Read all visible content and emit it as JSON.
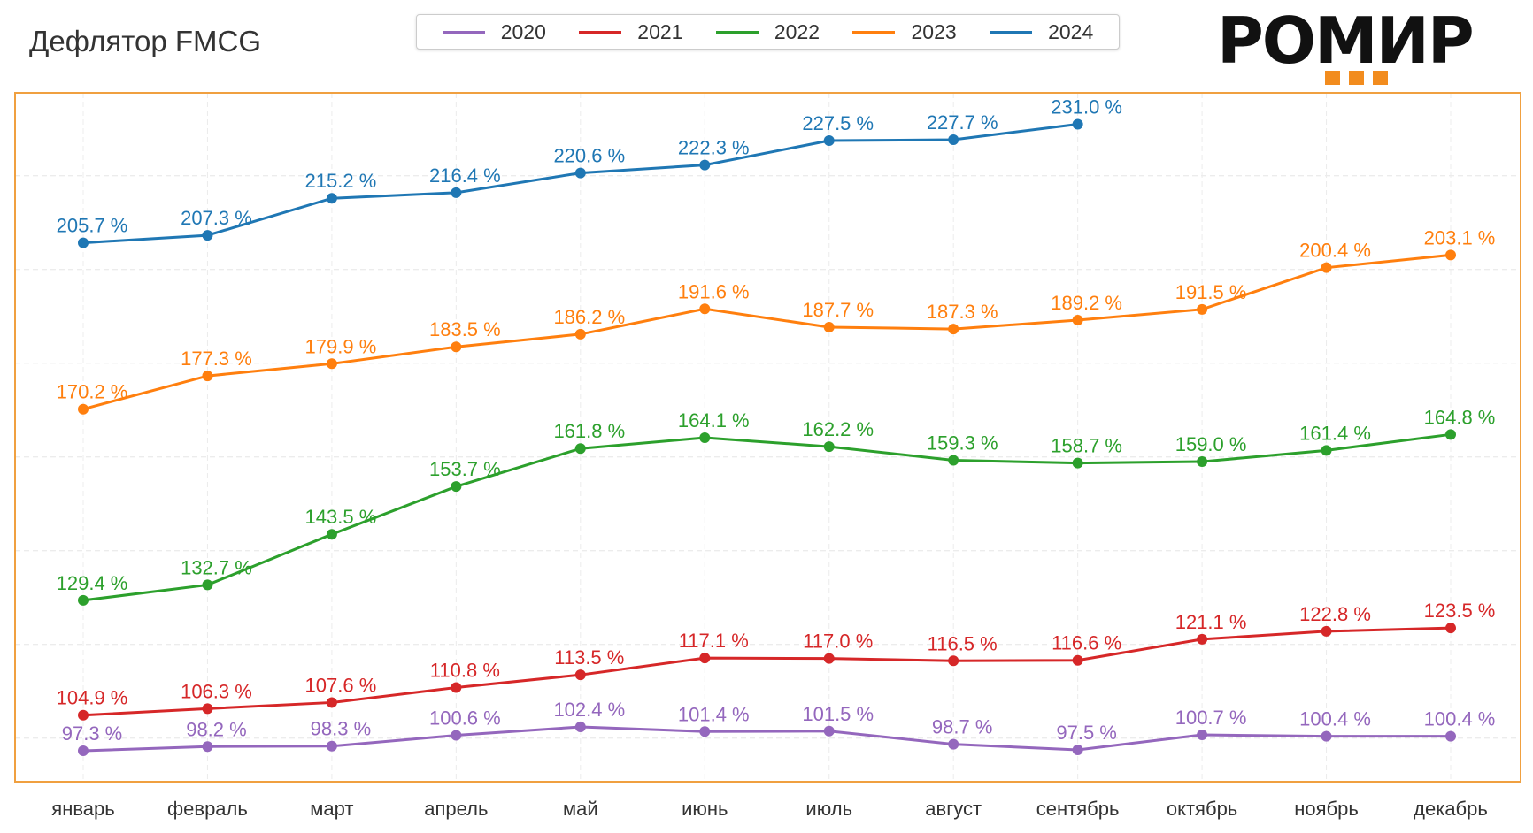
{
  "title": "Дефлятор FMCG",
  "logo": {
    "text": "РОМИР",
    "accent": "#f28c1e"
  },
  "chart_data": {
    "type": "line",
    "title": "Дефлятор FMCG",
    "xlabel": "",
    "ylabel": "",
    "categories": [
      "январь",
      "февраль",
      "март",
      "апрель",
      "май",
      "июнь",
      "июль",
      "август",
      "сентябрь",
      "октябрь",
      "ноябрь",
      "декабрь"
    ],
    "ylim": [
      90.7,
      237.7
    ],
    "grid": true,
    "legend": "top-center",
    "frame_color": "#f0a040",
    "series": [
      {
        "name": "2020",
        "color": "#9467bd",
        "values": [
          97.3,
          98.2,
          98.3,
          100.6,
          102.4,
          101.4,
          101.5,
          98.7,
          97.5,
          100.7,
          100.4,
          100.4
        ]
      },
      {
        "name": "2021",
        "color": "#d62728",
        "values": [
          104.9,
          106.3,
          107.6,
          110.8,
          113.5,
          117.1,
          117.0,
          116.5,
          116.6,
          121.1,
          122.8,
          123.5
        ]
      },
      {
        "name": "2022",
        "color": "#2ca02c",
        "values": [
          129.4,
          132.7,
          143.5,
          153.7,
          161.8,
          164.1,
          162.2,
          159.3,
          158.7,
          159.0,
          161.4,
          164.8
        ]
      },
      {
        "name": "2023",
        "color": "#ff7f0e",
        "values": [
          170.2,
          177.3,
          179.9,
          183.5,
          186.2,
          191.6,
          187.7,
          187.3,
          189.2,
          191.5,
          200.4,
          203.1
        ]
      },
      {
        "name": "2024",
        "color": "#1f77b4",
        "values": [
          205.7,
          207.3,
          215.2,
          216.4,
          220.6,
          222.3,
          227.5,
          227.7,
          231.0,
          null,
          null,
          null
        ]
      }
    ]
  }
}
